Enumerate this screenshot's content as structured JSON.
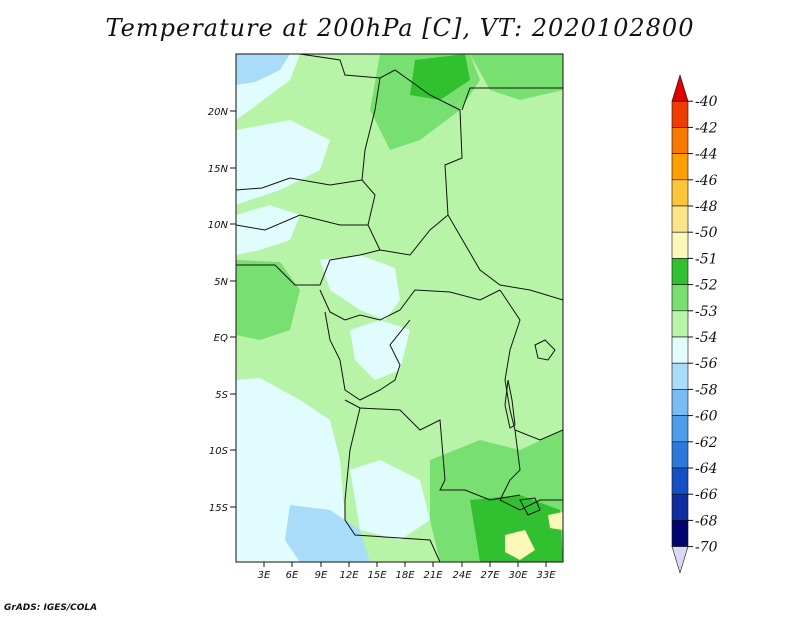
{
  "title": "Temperature at 200hPa [C], VT: 2020102800",
  "credit": "GrADS: IGES/COLA",
  "axes": {
    "lat_labels": [
      "20N",
      "15N",
      "10N",
      "5N",
      "EQ",
      "5S",
      "10S",
      "15S"
    ],
    "lon_labels": [
      "3E",
      "6E",
      "9E",
      "12E",
      "15E",
      "18E",
      "21E",
      "24E",
      "27E",
      "30E",
      "33E"
    ]
  },
  "legend": {
    "labels": [
      "-40",
      "-42",
      "-44",
      "-46",
      "-48",
      "-50",
      "-51",
      "-52",
      "-53",
      "-54",
      "-56",
      "-58",
      "-60",
      "-62",
      "-64",
      "-66",
      "-68",
      "-70"
    ],
    "colors": [
      "#e00000",
      "#f03c00",
      "#f87800",
      "#fca000",
      "#fcc438",
      "#fce488",
      "#fcf8b8",
      "#30c030",
      "#78e070",
      "#b8f4a8",
      "#e0fcfc",
      "#a8dcf8",
      "#78bcf4",
      "#4c9cec",
      "#2c78dc",
      "#1450c4",
      "#0c2ca0",
      "#040470",
      "#d8d8f8"
    ]
  },
  "colors": {
    "light_green": "#b8f4a8",
    "mid_green": "#78e070",
    "dark_green": "#30c030",
    "pale_cyan": "#e0fcfc",
    "light_blue": "#a8dcf8",
    "pale_yellow": "#fcf8b8"
  }
}
